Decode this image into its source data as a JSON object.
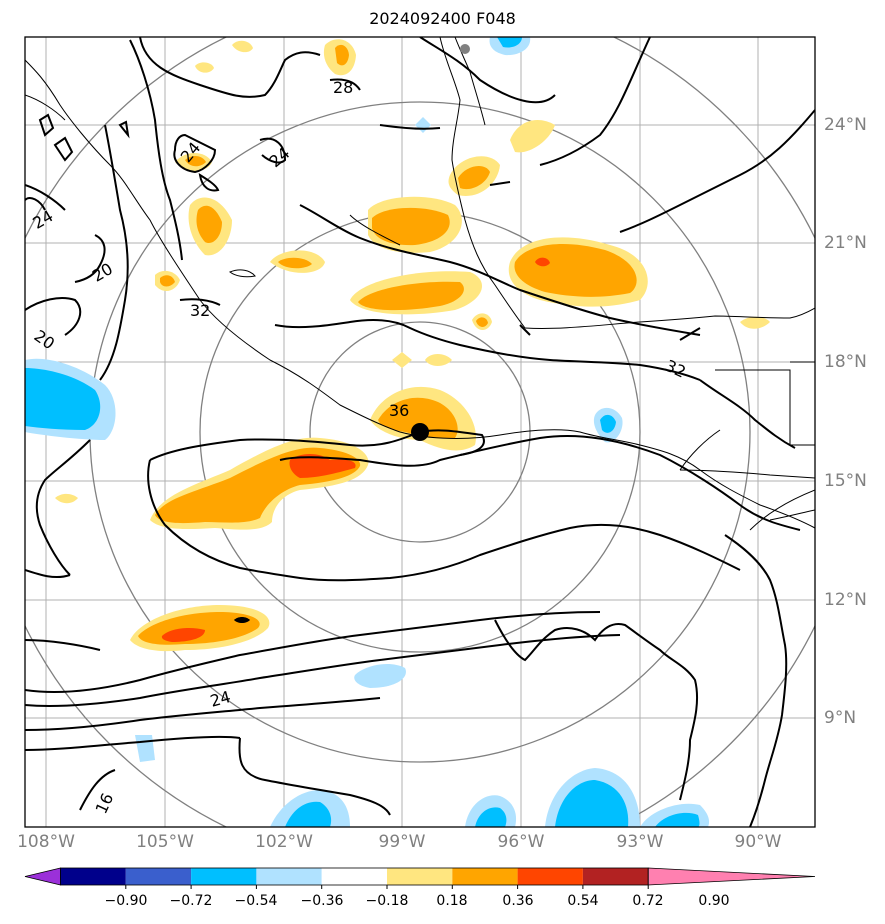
{
  "title": "2024092400 F048",
  "map": {
    "lon_labels": [
      "108°W",
      "105°W",
      "102°W",
      "99°W",
      "96°W",
      "93°W",
      "90°W"
    ],
    "lat_labels": [
      "24°N",
      "21°N",
      "18°N",
      "15°N",
      "12°N",
      "9°N"
    ],
    "contour_labels": [
      "28",
      "24",
      "24",
      "24",
      "20",
      "32",
      "20",
      "36",
      "32",
      "24",
      "16"
    ],
    "center_marker": "storm-center"
  },
  "colorbar": {
    "ticks": [
      "−0.90",
      "−0.72",
      "−0.54",
      "−0.36",
      "−0.18",
      "0.18",
      "0.36",
      "0.54",
      "0.72",
      "0.90"
    ],
    "colors": [
      "#9b30d9",
      "#00008b",
      "#3a5fcd",
      "#00bfff",
      "#b0e2ff",
      "#ffffff",
      "#ffe680",
      "#ffa500",
      "#ff4500",
      "#b22222",
      "#ff80b0"
    ]
  }
}
